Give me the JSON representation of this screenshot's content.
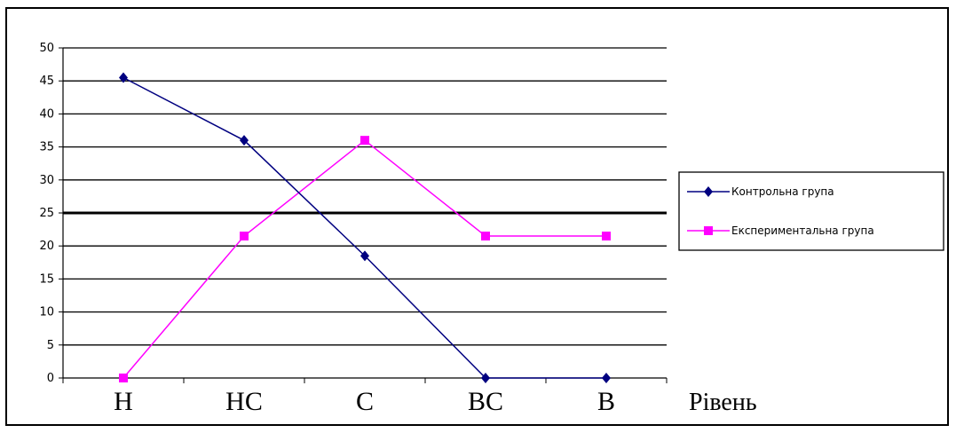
{
  "chart_data": {
    "type": "line",
    "categories": [
      "Н",
      "НС",
      "С",
      "ВС",
      "В"
    ],
    "series": [
      {
        "name": "Контрольна група",
        "values": [
          45.5,
          36,
          18.5,
          0,
          0
        ],
        "color": "#000080",
        "marker": "diamond"
      },
      {
        "name": "Експериментальна група",
        "values": [
          0,
          21.5,
          36,
          21.5,
          21.5
        ],
        "color": "#ff00ff",
        "marker": "square"
      }
    ],
    "xlabel": "Рівень",
    "ylabel": "",
    "title": "",
    "ylim": [
      0,
      50
    ],
    "yticks": [
      0,
      5,
      10,
      15,
      20,
      25,
      30,
      35,
      40,
      45,
      50
    ],
    "grid": true,
    "emphasized_gridline": 25,
    "legend_position": "right"
  }
}
